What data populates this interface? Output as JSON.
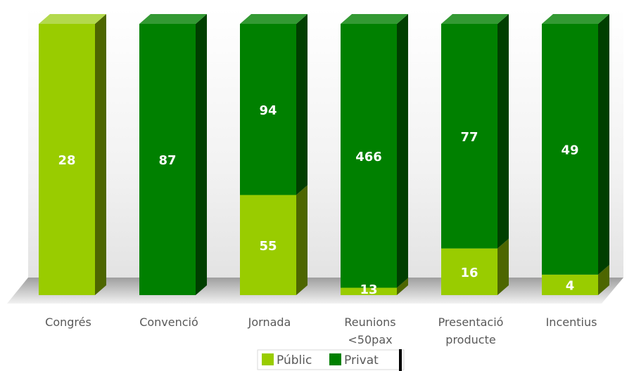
{
  "chart_data": {
    "type": "bar",
    "stacked": true,
    "three_d": true,
    "categories": [
      "Congrés",
      "Convenció",
      "Jornada",
      "Reunions <50pax",
      "Presentació producte",
      "Incentius"
    ],
    "category_lines": [
      [
        "Congrés"
      ],
      [
        "Convenció"
      ],
      [
        "Jornada"
      ],
      [
        "Reunions",
        "<50pax"
      ],
      [
        "Presentació",
        "producte"
      ],
      [
        "Incentius"
      ]
    ],
    "series": [
      {
        "name": "Públic",
        "values": [
          28,
          0,
          55,
          13,
          16,
          4
        ],
        "color": "#99cc00",
        "side_color": "#4d6600",
        "top_color": "#b3d94d"
      },
      {
        "name": "Privat",
        "values": [
          0,
          87,
          94,
          466,
          77,
          49
        ],
        "color": "#008000",
        "side_color": "#003f00",
        "top_color": "#339933"
      }
    ],
    "normalized": true,
    "ylim": [
      0,
      1
    ],
    "legend_position": "bottom",
    "grid": false
  }
}
